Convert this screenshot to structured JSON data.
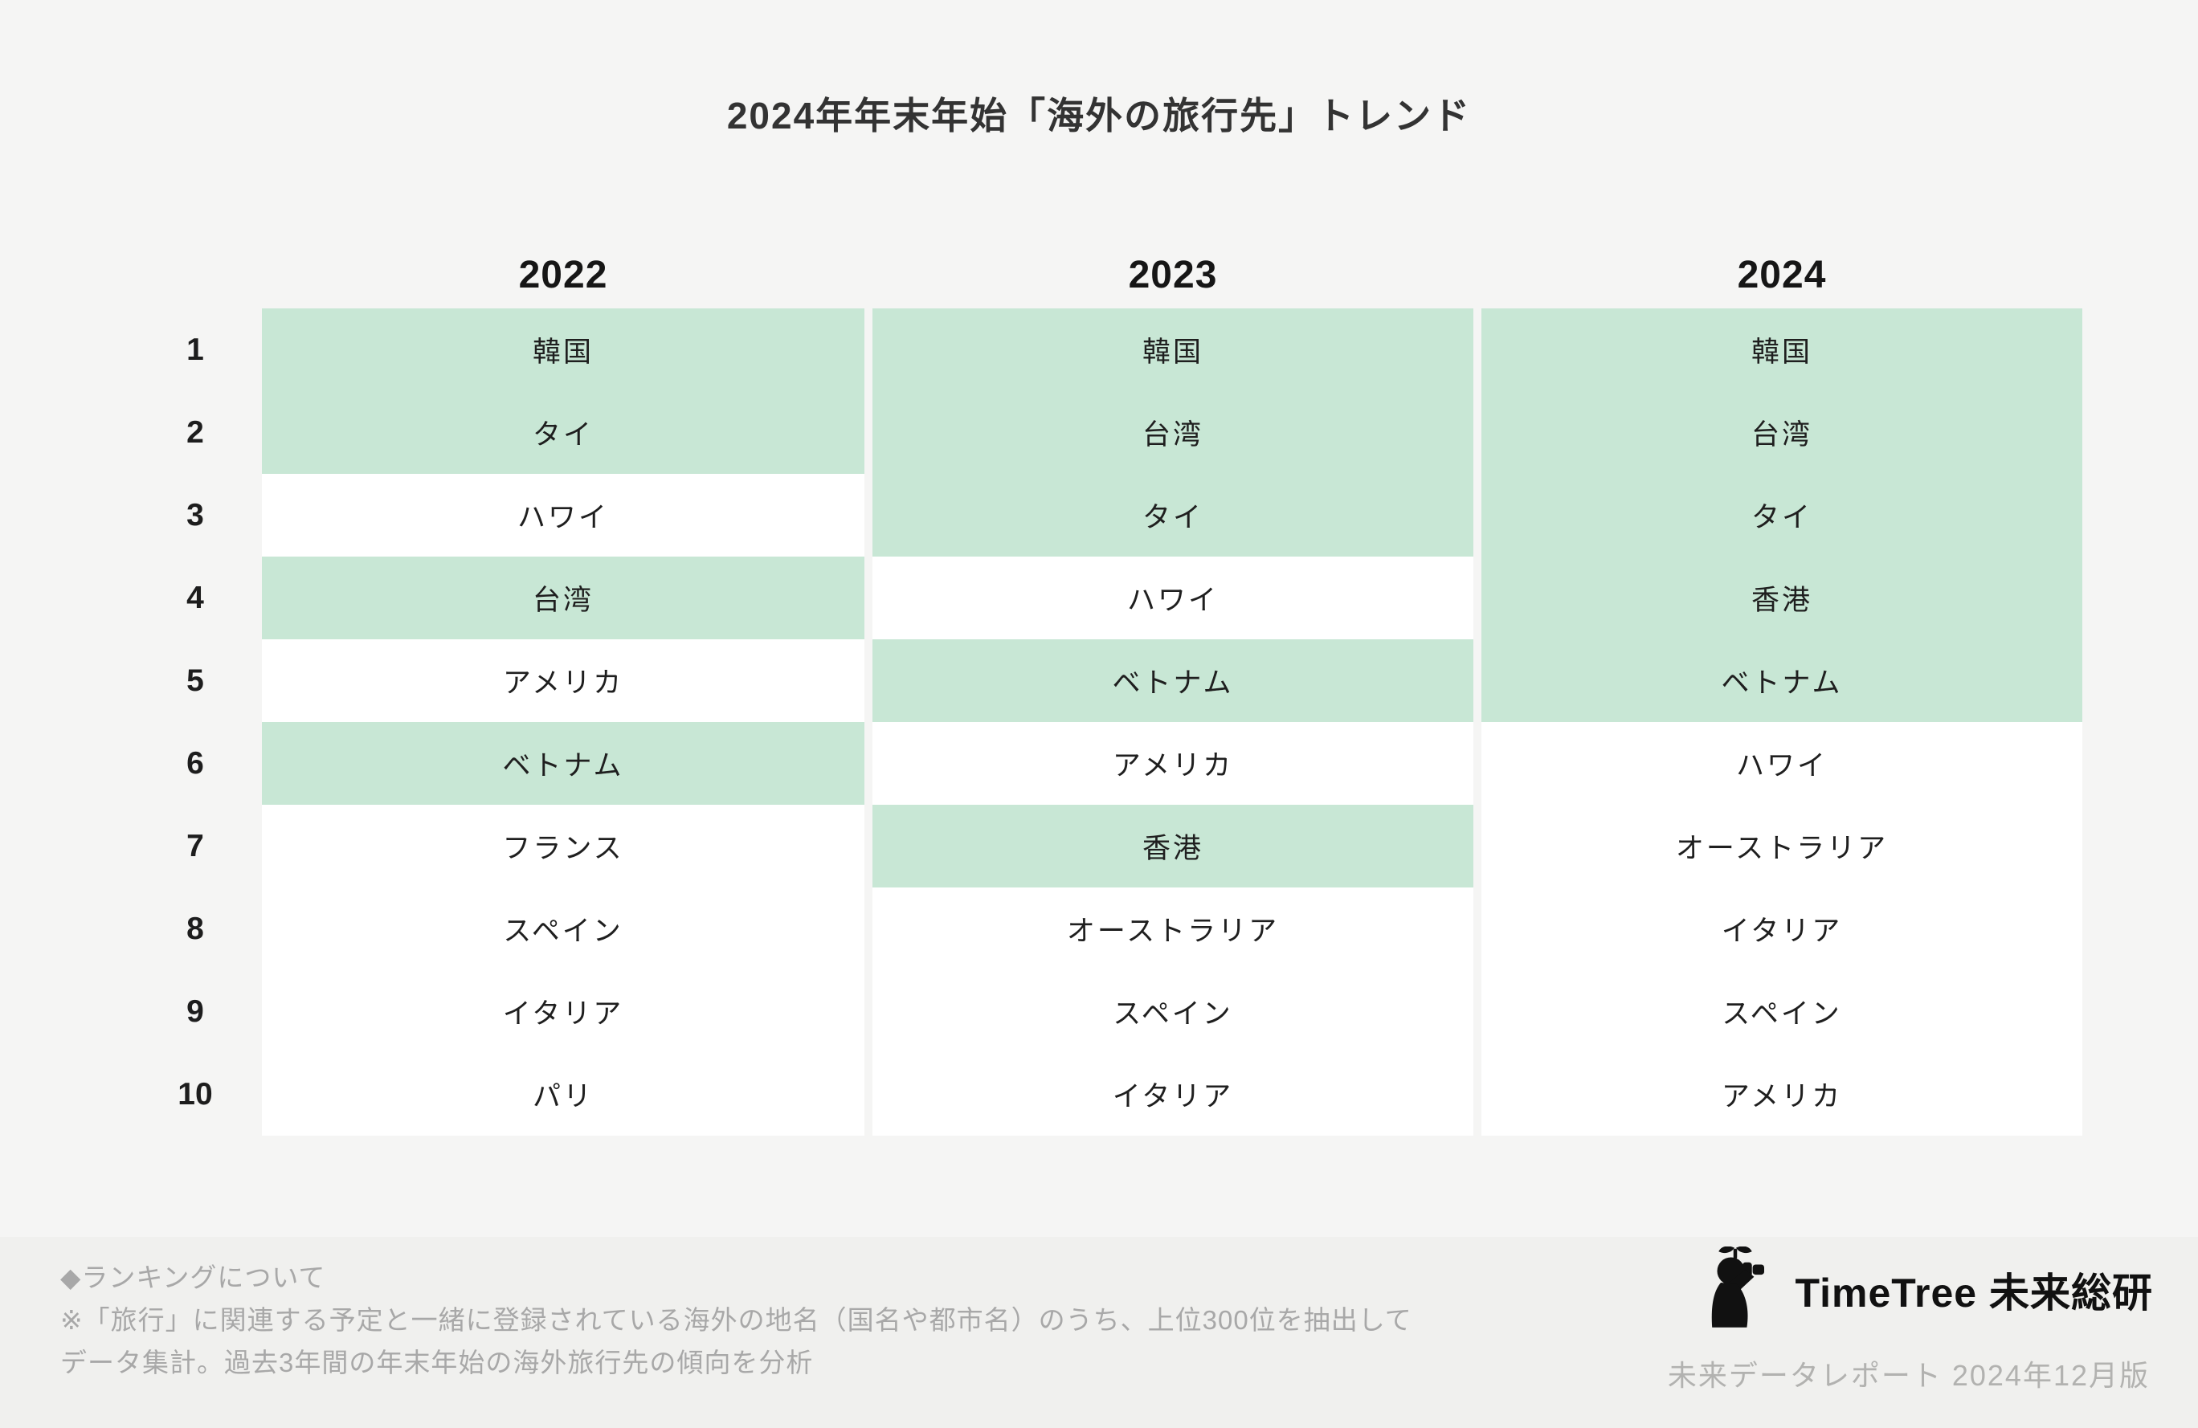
{
  "title": "2024年年末年始「海外の旅行先」トレンド",
  "colors": {
    "highlight": "#c8e7d5",
    "page_bg": "#f5f5f4",
    "footer_bg": "#f0f0ee",
    "note_text": "#a8a8a8",
    "brand_text": "#111111"
  },
  "chart_data": {
    "type": "table",
    "title": "2024年年末年始「海外の旅行先」トレンド",
    "columns": [
      "2022",
      "2023",
      "2024"
    ],
    "ranks": [
      "1",
      "2",
      "3",
      "4",
      "5",
      "6",
      "7",
      "8",
      "9",
      "10"
    ],
    "series": [
      {
        "name": "2022",
        "values": [
          "韓国",
          "タイ",
          "ハワイ",
          "台湾",
          "アメリカ",
          "ベトナム",
          "フランス",
          "スペイン",
          "イタリア",
          "パリ"
        ],
        "highlighted": [
          true,
          true,
          false,
          true,
          false,
          true,
          false,
          false,
          false,
          false
        ]
      },
      {
        "name": "2023",
        "values": [
          "韓国",
          "台湾",
          "タイ",
          "ハワイ",
          "ベトナム",
          "アメリカ",
          "香港",
          "オーストラリア",
          "スペイン",
          "イタリア"
        ],
        "highlighted": [
          true,
          true,
          true,
          false,
          true,
          false,
          true,
          false,
          false,
          false
        ]
      },
      {
        "name": "2024",
        "values": [
          "韓国",
          "台湾",
          "タイ",
          "香港",
          "ベトナム",
          "ハワイ",
          "オーストラリア",
          "イタリア",
          "スペイン",
          "アメリカ"
        ],
        "highlighted": [
          true,
          true,
          true,
          true,
          true,
          false,
          false,
          false,
          false,
          false
        ]
      }
    ],
    "legend_note": "highlighted cells use mint green background",
    "grid": false,
    "legend_position": "none"
  },
  "footer": {
    "note_title": "◆ランキングについて",
    "note_line1": "※「旅行」に関連する予定と一緒に登録されている海外の地名（国名や都市名）のうち、上位300位を抽出して",
    "note_line2": "データ集計。過去3年間の年末年始の海外旅行先の傾向を分析",
    "brand": "TimeTree 未来総研",
    "report": "未来データレポート 2024年12月版"
  }
}
